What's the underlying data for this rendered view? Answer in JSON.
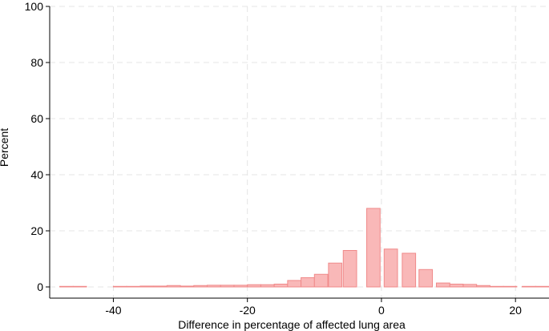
{
  "chart_data": {
    "type": "bar",
    "xlabel": "Difference in percentage of affected lung area",
    "ylabel": "Percent",
    "xlim": [
      -49.5,
      25.0
    ],
    "ylim": [
      0,
      100
    ],
    "xticks": [
      -40,
      -20,
      0,
      20
    ],
    "yticks": [
      0,
      20,
      40,
      60,
      80,
      100
    ],
    "grid": true,
    "bar_color": "#f9b8b8",
    "bar_edge_color": "#f08a8a",
    "bin_width": 2.0,
    "bins": [
      {
        "start": -48.0,
        "value": 0.2
      },
      {
        "start": -46.0,
        "value": 0.2
      },
      {
        "start": -40.0,
        "value": 0.2
      },
      {
        "start": -38.0,
        "value": 0.2
      },
      {
        "start": -36.0,
        "value": 0.3
      },
      {
        "start": -34.0,
        "value": 0.3
      },
      {
        "start": -32.0,
        "value": 0.5
      },
      {
        "start": -30.0,
        "value": 0.3
      },
      {
        "start": -28.0,
        "value": 0.5
      },
      {
        "start": -26.0,
        "value": 0.6
      },
      {
        "start": -24.0,
        "value": 0.6
      },
      {
        "start": -22.0,
        "value": 0.6
      },
      {
        "start": -20.0,
        "value": 0.8
      },
      {
        "start": -18.0,
        "value": 0.8
      },
      {
        "start": -16.0,
        "value": 1.0
      },
      {
        "start": -14.0,
        "value": 2.3
      },
      {
        "start": -12.0,
        "value": 3.3
      },
      {
        "start": -10.0,
        "value": 4.5
      },
      {
        "start": -7.9,
        "value": 8.5
      },
      {
        "start": -5.7,
        "value": 13.0
      },
      {
        "start": -2.2,
        "value": 28.0
      },
      {
        "start": 0.4,
        "value": 13.5
      },
      {
        "start": 3.1,
        "value": 12.0
      },
      {
        "start": 5.6,
        "value": 6.2
      },
      {
        "start": 8.2,
        "value": 1.4
      },
      {
        "start": 10.2,
        "value": 1.0
      },
      {
        "start": 12.2,
        "value": 0.9
      },
      {
        "start": 14.2,
        "value": 0.5
      },
      {
        "start": 16.2,
        "value": 0.2
      },
      {
        "start": 18.2,
        "value": 0.2
      },
      {
        "start": 21.0,
        "value": 0.2
      },
      {
        "start": 23.0,
        "value": 0.2
      }
    ]
  }
}
